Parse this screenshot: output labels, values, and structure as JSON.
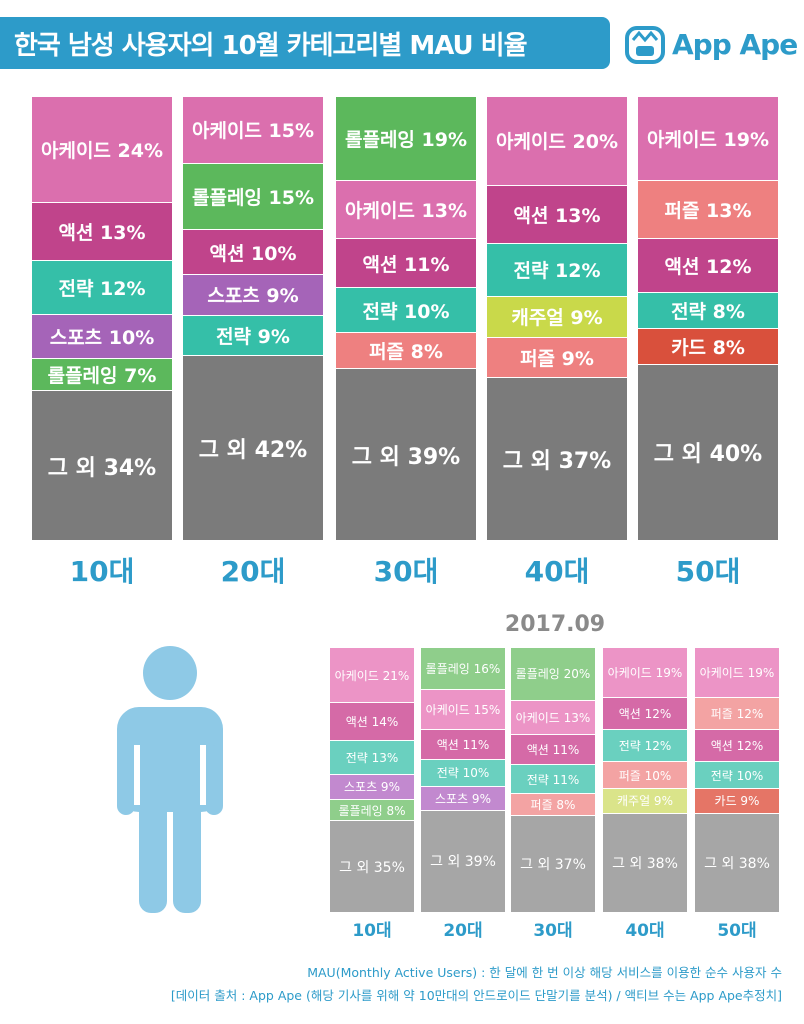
{
  "header": {
    "title": "한국 남성 사용자의 10월 카테고리별 MAU 비율",
    "logo": "App Ape"
  },
  "colors": {
    "아케이드": "#db6fae",
    "액션": "#c0448b",
    "전략": "#35bfa8",
    "스포츠": "#a564b8",
    "롤플레잉": "#5cb85c",
    "퍼즐": "#ee8080",
    "캐주얼": "#c9d94a",
    "카드": "#d9503c",
    "그 외": "#7b7b7b"
  },
  "colors_light": {
    "아케이드": "#ec94c6",
    "액션": "#d56aa7",
    "전략": "#6ad0bf",
    "스포츠": "#c289cf",
    "롤플레잉": "#8fce8b",
    "퍼즐": "#f3a3a3",
    "캐주얼": "#dae48a",
    "카드": "#e57566",
    "그 외": "#a6a6a6"
  },
  "chart_data": [
    {
      "type": "bar",
      "stacked": true,
      "title": "2017.10",
      "categories": [
        "10대",
        "20대",
        "30대",
        "40대",
        "50대"
      ],
      "stacks": [
        [
          {
            "name": "아케이드",
            "value": 24
          },
          {
            "name": "액션",
            "value": 13
          },
          {
            "name": "전략",
            "value": 12
          },
          {
            "name": "스포츠",
            "value": 10
          },
          {
            "name": "롤플레잉",
            "value": 7
          },
          {
            "name": "그 외",
            "value": 34
          }
        ],
        [
          {
            "name": "아케이드",
            "value": 15
          },
          {
            "name": "롤플레잉",
            "value": 15
          },
          {
            "name": "액션",
            "value": 10
          },
          {
            "name": "스포츠",
            "value": 9
          },
          {
            "name": "전략",
            "value": 9
          },
          {
            "name": "그 외",
            "value": 42
          }
        ],
        [
          {
            "name": "롤플레잉",
            "value": 19
          },
          {
            "name": "아케이드",
            "value": 13
          },
          {
            "name": "액션",
            "value": 11
          },
          {
            "name": "전략",
            "value": 10
          },
          {
            "name": "퍼즐",
            "value": 8
          },
          {
            "name": "그 외",
            "value": 39
          }
        ],
        [
          {
            "name": "아케이드",
            "value": 20
          },
          {
            "name": "액션",
            "value": 13
          },
          {
            "name": "전략",
            "value": 12
          },
          {
            "name": "캐주얼",
            "value": 9
          },
          {
            "name": "퍼즐",
            "value": 9
          },
          {
            "name": "그 외",
            "value": 37
          }
        ],
        [
          {
            "name": "아케이드",
            "value": 19
          },
          {
            "name": "퍼즐",
            "value": 13
          },
          {
            "name": "액션",
            "value": 12
          },
          {
            "name": "전략",
            "value": 8
          },
          {
            "name": "카드",
            "value": 8
          },
          {
            "name": "그 외",
            "value": 40
          }
        ]
      ]
    },
    {
      "type": "bar",
      "stacked": true,
      "title": "2017.09",
      "categories": [
        "10대",
        "20대",
        "30대",
        "40대",
        "50대"
      ],
      "stacks": [
        [
          {
            "name": "아케이드",
            "value": 21
          },
          {
            "name": "액션",
            "value": 14
          },
          {
            "name": "전략",
            "value": 13
          },
          {
            "name": "스포츠",
            "value": 9
          },
          {
            "name": "롤플레잉",
            "value": 8
          },
          {
            "name": "그 외",
            "value": 35
          }
        ],
        [
          {
            "name": "롤플레잉",
            "value": 16
          },
          {
            "name": "아케이드",
            "value": 15
          },
          {
            "name": "액션",
            "value": 11
          },
          {
            "name": "전략",
            "value": 10
          },
          {
            "name": "스포츠",
            "value": 9
          },
          {
            "name": "그 외",
            "value": 39
          }
        ],
        [
          {
            "name": "롤플레잉",
            "value": 20
          },
          {
            "name": "아케이드",
            "value": 13
          },
          {
            "name": "액션",
            "value": 11
          },
          {
            "name": "전략",
            "value": 11
          },
          {
            "name": "퍼즐",
            "value": 8
          },
          {
            "name": "그 외",
            "value": 37
          }
        ],
        [
          {
            "name": "아케이드",
            "value": 19
          },
          {
            "name": "액션",
            "value": 12
          },
          {
            "name": "전략",
            "value": 12
          },
          {
            "name": "퍼즐",
            "value": 10
          },
          {
            "name": "캐주얼",
            "value": 9
          },
          {
            "name": "그 외",
            "value": 38
          }
        ],
        [
          {
            "name": "아케이드",
            "value": 19
          },
          {
            "name": "퍼즐",
            "value": 12
          },
          {
            "name": "액션",
            "value": 12
          },
          {
            "name": "전략",
            "value": 10
          },
          {
            "name": "카드",
            "value": 9
          },
          {
            "name": "그 외",
            "value": 38
          }
        ]
      ]
    }
  ],
  "footer": {
    "line1": "MAU(Monthly Active Users) : 한 달에 한 번 이상 해당 서비스를 이용한 순수 사용자 수",
    "line2": "[데이터 출처 : App Ape (해당 기사를 위해 약 10만대의 안드로이드 단말기를 분석) / 액티브 수는 App Ape추정치]"
  }
}
